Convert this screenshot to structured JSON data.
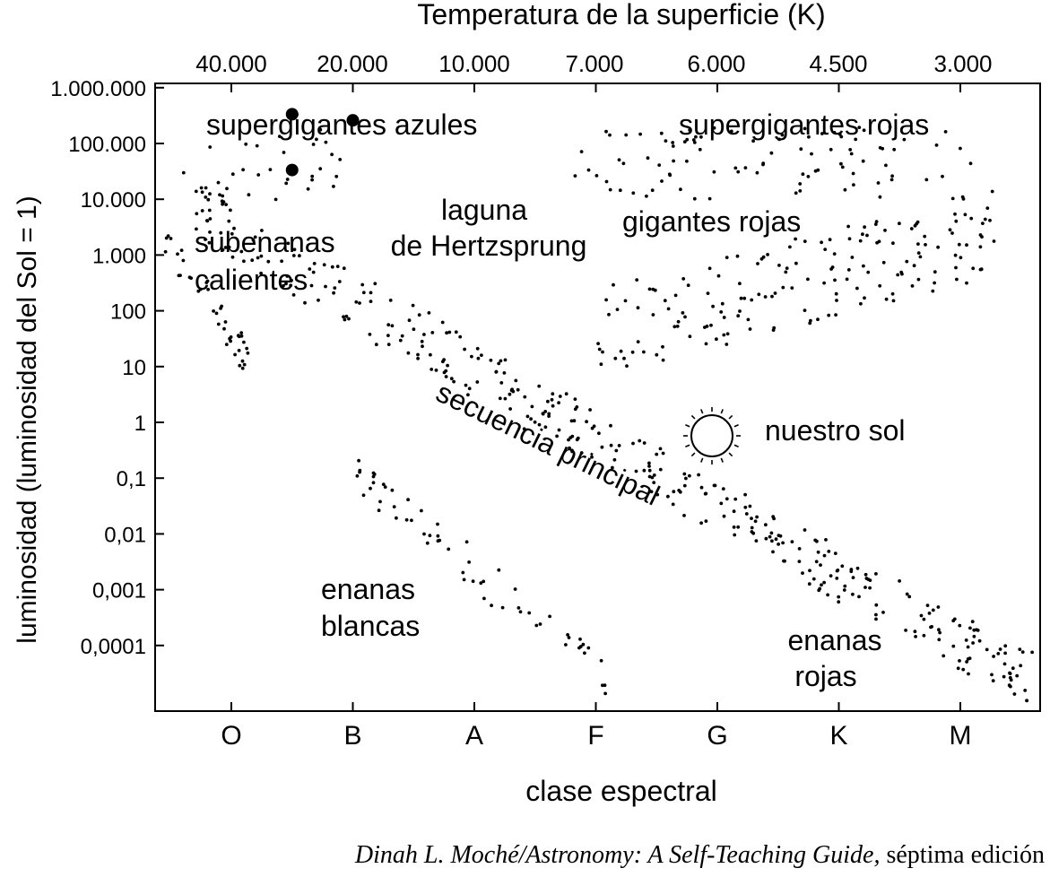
{
  "chart_data": {
    "type": "scatter",
    "title": "",
    "top_axis": {
      "label": "Temperatura de la superficie (K)",
      "tick_labels": [
        "40.000",
        "20.000",
        "10.000",
        "7.000",
        "6.000",
        "4.500",
        "3.000"
      ]
    },
    "xlabel": "clase espectral",
    "x_categories": [
      "O",
      "B",
      "A",
      "F",
      "G",
      "K",
      "M"
    ],
    "ylabel": "luminosidad (luminosidad del Sol = 1)",
    "y_scale": "log",
    "ylim": [
      1e-05,
      1000000
    ],
    "y_tick_labels": [
      "1.000.000",
      "100.000",
      "10.000",
      "1.000",
      "100",
      "10",
      "1",
      "0,1",
      "0,01",
      "0,001",
      "0,0001"
    ],
    "grid": false,
    "regions": [
      {
        "name": "supergigantes azules",
        "text": "supergigantes azules",
        "x_class": [
          -0.7,
          0.8
        ],
        "log_lum": [
          4.5,
          5.6
        ]
      },
      {
        "name": "supergigantes rojas",
        "text": "supergigantes rojas",
        "x_class": [
          2.8,
          6.1
        ],
        "log_lum": [
          4.0,
          5.3
        ]
      },
      {
        "name": "gigantes rojas",
        "text": "gigantes rojas",
        "x_class": [
          3.0,
          6.3
        ],
        "log_lum": [
          0.8,
          3.8
        ]
      },
      {
        "name": "subenanas calientes",
        "text": "subenanas calientes",
        "x_class": [
          -0.6,
          0.1
        ],
        "log_lum": [
          1.1,
          4.1
        ]
      },
      {
        "name": "secuencia principal",
        "text": "secuencia principal",
        "x_class": [
          -0.3,
          6.8
        ],
        "log_lum": [
          -4.8,
          3.4
        ]
      },
      {
        "name": "enanas blancas",
        "text": "enanas blancas",
        "x_class": [
          1.0,
          3.1
        ],
        "log_lum": [
          -4.7,
          -0.8
        ]
      }
    ],
    "annotations": [
      {
        "text": "laguna"
      },
      {
        "text": "de Hertzsprung"
      },
      {
        "text": "nuestro sol"
      },
      {
        "text": "enanas"
      },
      {
        "text": "rojas"
      }
    ],
    "sun": {
      "class": "G",
      "luminosity": 1
    },
    "bright_stars": [
      {
        "x_class": 0.5,
        "luminosity": 450000
      },
      {
        "x_class": 1.0,
        "luminosity": 350000
      },
      {
        "x_class": 0.5,
        "luminosity": 45000
      }
    ]
  },
  "labels": {
    "subenanas_1": "subenanas",
    "subenanas_2": "calientes",
    "enanas_blancas_1": "enanas",
    "enanas_blancas_2": "blancas"
  },
  "credit": {
    "source": "Dinah L. Moché/Astronomy: A Self-Teaching Guide,",
    "edition": " séptima edición"
  }
}
